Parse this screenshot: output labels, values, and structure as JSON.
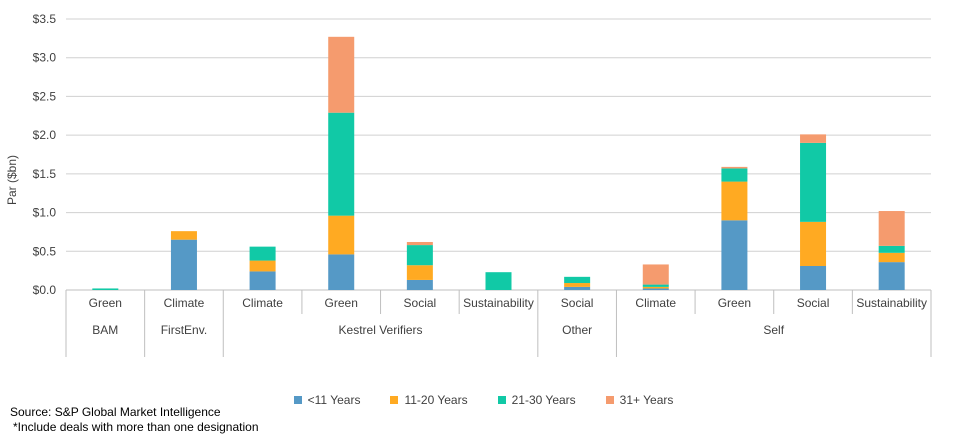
{
  "chart_data": {
    "type": "bar",
    "stacked": true,
    "ylabel": "Par ($bn)",
    "ylim": [
      0,
      3.5
    ],
    "yticks": [
      "$0.0",
      "$0.5",
      "$1.0",
      "$1.5",
      "$2.0",
      "$2.5",
      "$3.0",
      "$3.5"
    ],
    "grid": true,
    "legend_position": "bottom",
    "categories": [
      "Green",
      "Climate",
      "Climate",
      "Green",
      "Social",
      "Sustainability",
      "Social",
      "Climate",
      "Green",
      "Social",
      "Sustainability"
    ],
    "groups": [
      {
        "label": "BAM",
        "span": 1
      },
      {
        "label": "FirstEnv.",
        "span": 1
      },
      {
        "label": "Kestrel Verifiers",
        "span": 4
      },
      {
        "label": "Other",
        "span": 1
      },
      {
        "label": "Self",
        "span": 4
      }
    ],
    "series": [
      {
        "name": "<11 Years",
        "color": "#5599c6",
        "values": [
          0.0,
          0.65,
          0.24,
          0.46,
          0.13,
          0.0,
          0.04,
          0.02,
          0.9,
          0.31,
          0.36
        ]
      },
      {
        "name": "11-20 Years",
        "color": "#ffaa22",
        "values": [
          0.0,
          0.11,
          0.14,
          0.5,
          0.19,
          0.0,
          0.05,
          0.02,
          0.5,
          0.57,
          0.12
        ]
      },
      {
        "name": "21-30 Years",
        "color": "#11c9a6",
        "values": [
          0.02,
          0.0,
          0.18,
          1.33,
          0.26,
          0.23,
          0.08,
          0.03,
          0.17,
          1.02,
          0.09
        ]
      },
      {
        "name": "31+ Years",
        "color": "#f59b6e",
        "values": [
          0.0,
          0.0,
          0.0,
          0.98,
          0.04,
          0.0,
          0.0,
          0.26,
          0.02,
          0.11,
          0.45
        ]
      }
    ]
  },
  "footnotes": {
    "source": "Source: S&P Global Market Intelligence",
    "note": "*Include deals with more than one designation"
  }
}
